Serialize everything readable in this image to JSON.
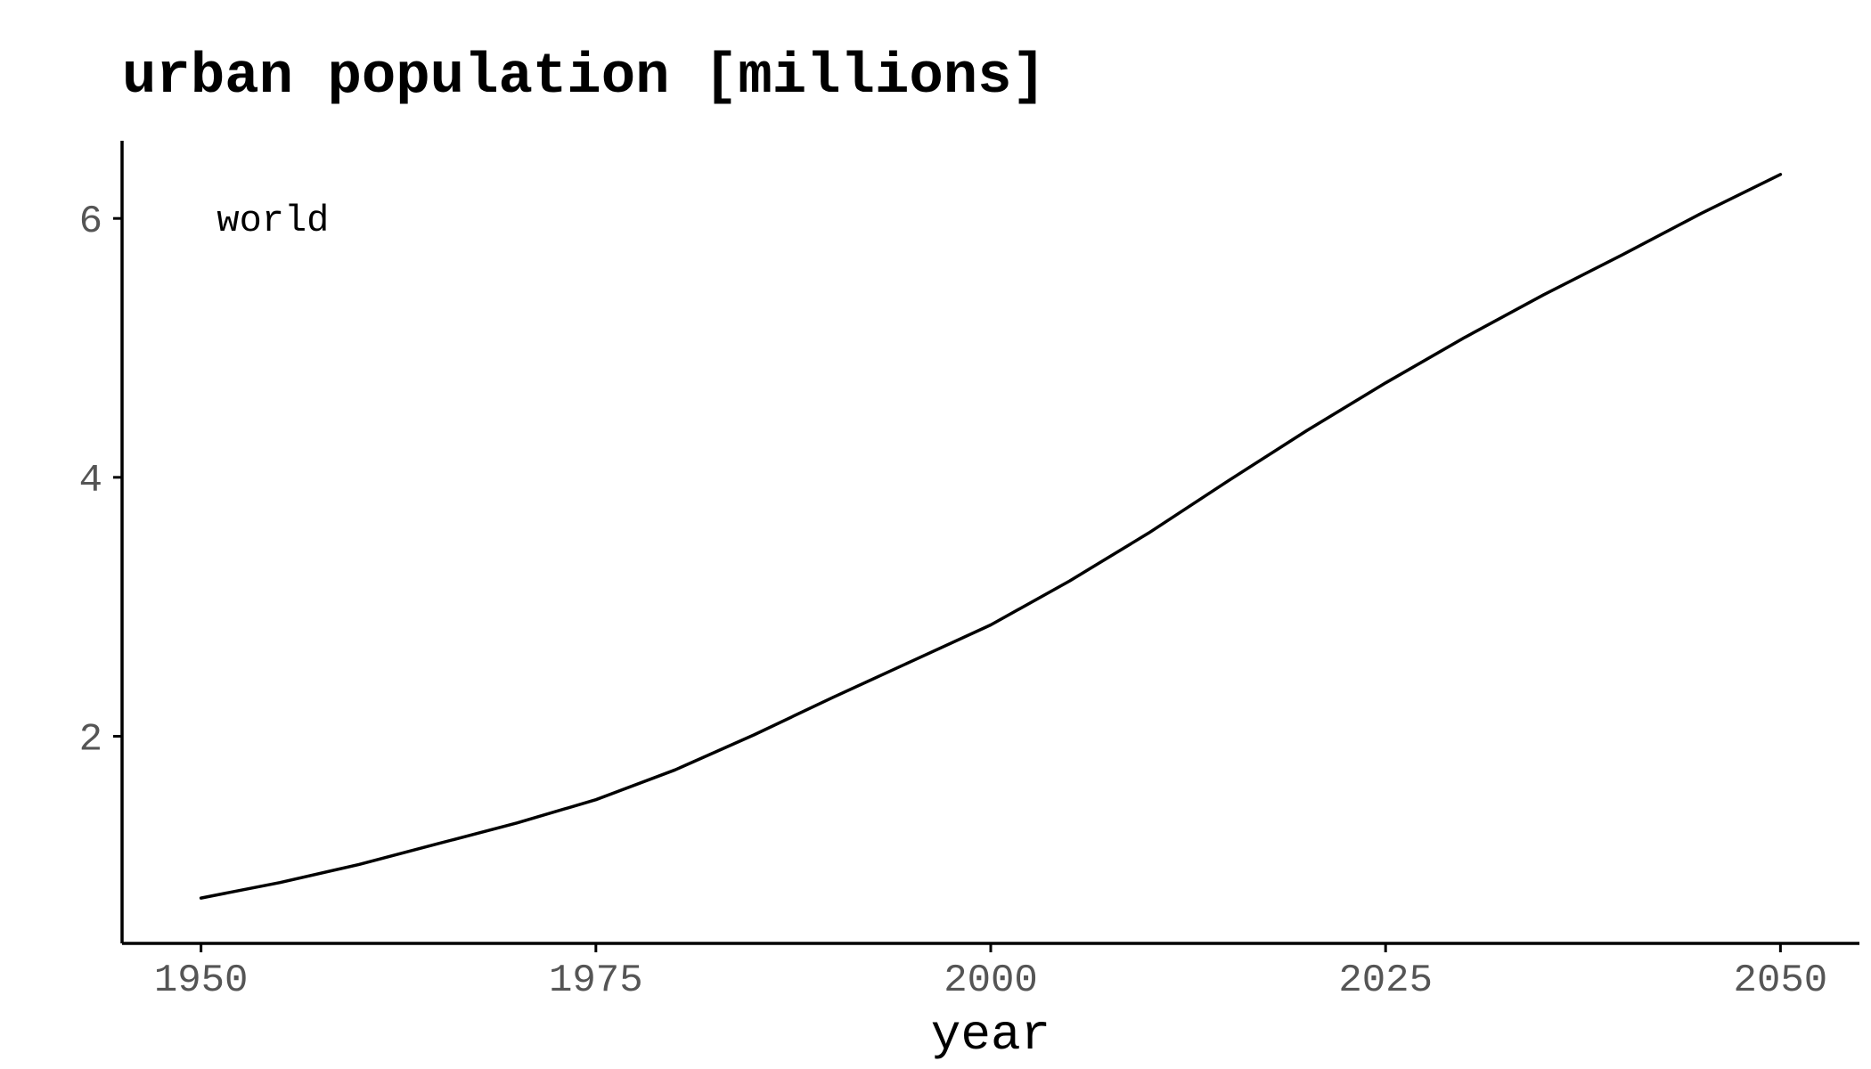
{
  "chart_data": {
    "type": "line",
    "title": "urban population [millions]",
    "xlabel": "year",
    "ylabel": "",
    "xlim": [
      1945,
      2055
    ],
    "ylim": [
      0.4,
      6.6
    ],
    "x_ticks": [
      1950,
      1975,
      2000,
      2025,
      2050
    ],
    "x_tick_labels": [
      "1950",
      "1975",
      "2000",
      "2025",
      "2050"
    ],
    "y_ticks": [
      2,
      4,
      6
    ],
    "y_tick_labels": [
      "2",
      "4",
      "6"
    ],
    "grid": false,
    "annotation": {
      "text": "world",
      "x": 1951,
      "y": 6
    },
    "series": [
      {
        "color": "#000000",
        "x": [
          1950,
          1955,
          1960,
          1965,
          1970,
          1975,
          1980,
          1985,
          1990,
          1995,
          2000,
          2005,
          2010,
          2015,
          2020,
          2025,
          2030,
          2035,
          2040,
          2045,
          2050
        ],
        "y": [
          0.75,
          0.87,
          1.01,
          1.17,
          1.33,
          1.51,
          1.74,
          2.01,
          2.3,
          2.58,
          2.86,
          3.2,
          3.57,
          3.97,
          4.36,
          4.73,
          5.08,
          5.41,
          5.72,
          6.04,
          6.34
        ]
      }
    ]
  }
}
